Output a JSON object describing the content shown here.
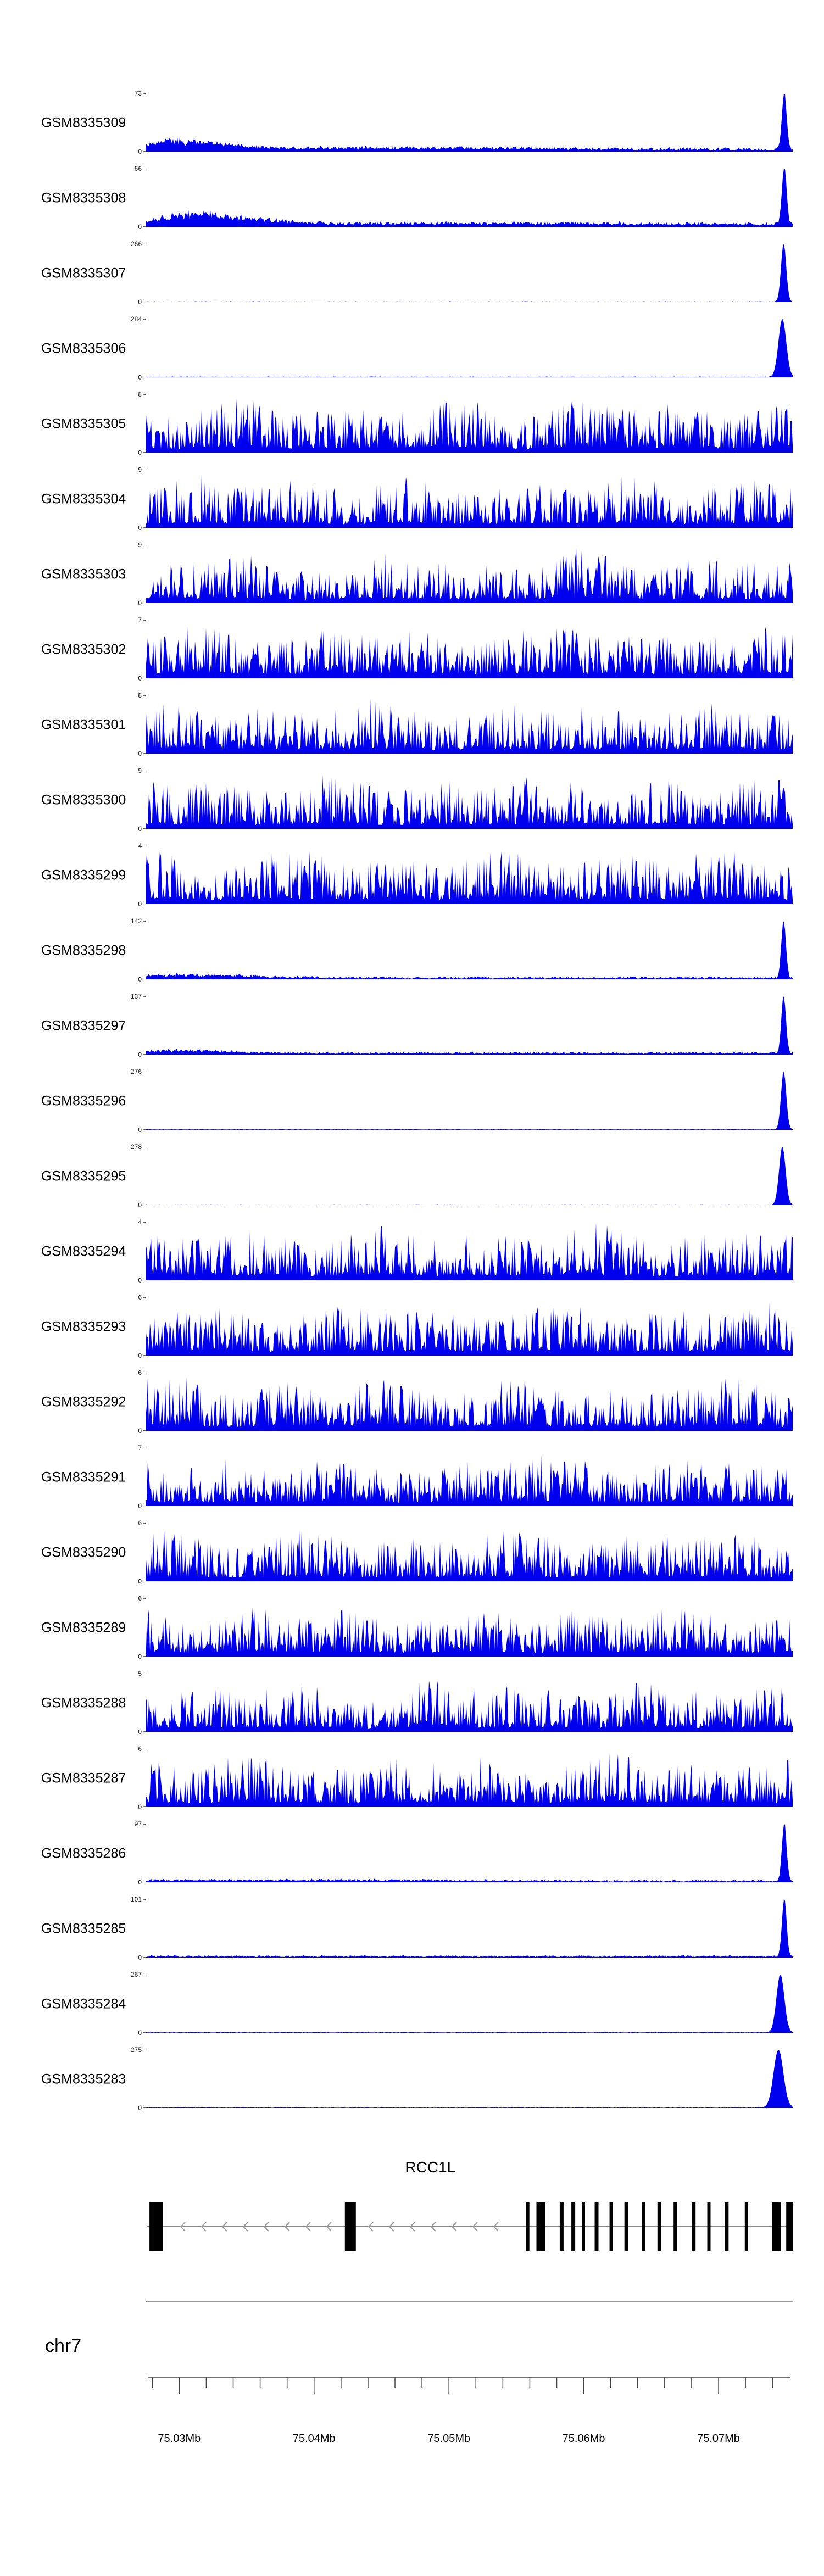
{
  "figure": {
    "background": "#ffffff",
    "signal_color": "#0000ee",
    "gene_color": "#000000",
    "intron_line_color": "#8a8a8a",
    "arrow_color": "#9a9a9a",
    "axis_color": "#444444"
  },
  "chart_data": {
    "type": "area",
    "description": "Stacked genome-browser coverage tracks (blue filled signal) over a genomic window, with RCC1L gene model and chr7 coordinate ruler below",
    "chromosome": "chr7",
    "x_range_mb": [
      75.0275,
      75.0755
    ],
    "x_tick_values": [
      75.03,
      75.04,
      75.05,
      75.06,
      75.07
    ],
    "x_tick_labels": [
      "75.03Mb",
      "75.04Mb",
      "75.05Mb",
      "75.06Mb",
      "75.07Mb"
    ],
    "minor_tick_step_mb": 0.002,
    "gene": {
      "name": "RCC1L",
      "strand": "-",
      "exons": [
        {
          "pos": 0.006,
          "w": 24
        },
        {
          "pos": 0.308,
          "w": 20
        },
        {
          "pos": 0.588,
          "w": 6
        },
        {
          "pos": 0.604,
          "w": 16
        },
        {
          "pos": 0.64,
          "w": 7
        },
        {
          "pos": 0.658,
          "w": 7
        },
        {
          "pos": 0.674,
          "w": 6
        },
        {
          "pos": 0.694,
          "w": 7
        },
        {
          "pos": 0.717,
          "w": 6
        },
        {
          "pos": 0.74,
          "w": 7
        },
        {
          "pos": 0.767,
          "w": 6
        },
        {
          "pos": 0.791,
          "w": 7
        },
        {
          "pos": 0.816,
          "w": 6
        },
        {
          "pos": 0.844,
          "w": 7
        },
        {
          "pos": 0.868,
          "w": 6
        },
        {
          "pos": 0.895,
          "w": 7
        },
        {
          "pos": 0.926,
          "w": 6
        },
        {
          "pos": 0.968,
          "w": 16
        },
        {
          "pos": 0.99,
          "w": 12
        }
      ]
    },
    "tracks": [
      {
        "label": "GSM8335309",
        "ymax": 73,
        "ymin": 0,
        "profile": "right-peak",
        "noise": 0.07,
        "bumps": [
          {
            "pos": 0.04,
            "width": 0.035,
            "amp": 0.14
          },
          {
            "pos": 0.1,
            "width": 0.05,
            "amp": 0.1
          },
          {
            "pos": 0.35,
            "width": 0.25,
            "amp": 0.035
          }
        ],
        "peak": {
          "pos": 0.987,
          "width": 0.0035,
          "amp": 1
        }
      },
      {
        "label": "GSM8335308",
        "ymax": 66,
        "ymin": 0,
        "profile": "right-peak",
        "noise": 0.075,
        "bumps": [
          {
            "pos": 0.07,
            "width": 0.05,
            "amp": 0.2
          },
          {
            "pos": 0.16,
            "width": 0.06,
            "amp": 0.1
          },
          {
            "pos": 0.55,
            "width": 0.3,
            "amp": 0.03
          }
        ],
        "peak": {
          "pos": 0.987,
          "width": 0.0035,
          "amp": 1
        }
      },
      {
        "label": "GSM8335307",
        "ymax": 266,
        "ymin": 0,
        "profile": "right-peak",
        "noise": 0.014,
        "bumps": [],
        "peak": {
          "pos": 0.986,
          "width": 0.004,
          "amp": 1
        }
      },
      {
        "label": "GSM8335306",
        "ymax": 284,
        "ymin": 0,
        "profile": "right-peak",
        "noise": 0.014,
        "bumps": [],
        "peak": {
          "pos": 0.984,
          "width": 0.006,
          "amp": 1
        }
      },
      {
        "label": "GSM8335305",
        "ymax": 8,
        "ymin": 0,
        "profile": "dense",
        "base": 0.95
      },
      {
        "label": "GSM8335304",
        "ymax": 9,
        "ymin": 0,
        "profile": "dense",
        "base": 0.92
      },
      {
        "label": "GSM8335303",
        "ymax": 9,
        "ymin": 0,
        "profile": "dense",
        "base": 0.9
      },
      {
        "label": "GSM8335302",
        "ymax": 7,
        "ymin": 0,
        "profile": "dense",
        "base": 0.95
      },
      {
        "label": "GSM8335301",
        "ymax": 8,
        "ymin": 0,
        "profile": "dense",
        "base": 0.92
      },
      {
        "label": "GSM8335300",
        "ymax": 9,
        "ymin": 0,
        "profile": "dense",
        "base": 0.95
      },
      {
        "label": "GSM8335299",
        "ymax": 4,
        "ymin": 0,
        "profile": "dense",
        "base": 1.0
      },
      {
        "label": "GSM8335298",
        "ymax": 142,
        "ymin": 0,
        "profile": "right-peak",
        "noise": 0.05,
        "bumps": [
          {
            "pos": 0.07,
            "width": 0.09,
            "amp": 0.07
          }
        ],
        "peak": {
          "pos": 0.986,
          "width": 0.0035,
          "amp": 1
        }
      },
      {
        "label": "GSM8335297",
        "ymax": 137,
        "ymin": 0,
        "profile": "right-peak",
        "noise": 0.05,
        "bumps": [
          {
            "pos": 0.05,
            "width": 0.07,
            "amp": 0.07
          }
        ],
        "peak": {
          "pos": 0.986,
          "width": 0.0035,
          "amp": 1
        }
      },
      {
        "label": "GSM8335296",
        "ymax": 276,
        "ymin": 0,
        "profile": "right-peak",
        "noise": 0.013,
        "bumps": [],
        "peak": {
          "pos": 0.986,
          "width": 0.004,
          "amp": 1
        }
      },
      {
        "label": "GSM8335295",
        "ymax": 278,
        "ymin": 0,
        "profile": "right-peak",
        "noise": 0.013,
        "bumps": [],
        "peak": {
          "pos": 0.984,
          "width": 0.005,
          "amp": 1
        }
      },
      {
        "label": "GSM8335294",
        "ymax": 4,
        "ymin": 0,
        "profile": "dense",
        "base": 1.0
      },
      {
        "label": "GSM8335293",
        "ymax": 6,
        "ymin": 0,
        "profile": "dense",
        "base": 0.95
      },
      {
        "label": "GSM8335292",
        "ymax": 6,
        "ymin": 0,
        "profile": "dense",
        "base": 0.95
      },
      {
        "label": "GSM8335291",
        "ymax": 7,
        "ymin": 0,
        "profile": "dense",
        "base": 0.88
      },
      {
        "label": "GSM8335290",
        "ymax": 6,
        "ymin": 0,
        "profile": "dense",
        "base": 0.92
      },
      {
        "label": "GSM8335289",
        "ymax": 6,
        "ymin": 0,
        "profile": "dense",
        "base": 0.92
      },
      {
        "label": "GSM8335288",
        "ymax": 5,
        "ymin": 0,
        "profile": "dense",
        "base": 0.92
      },
      {
        "label": "GSM8335287",
        "ymax": 6,
        "ymin": 0,
        "profile": "dense",
        "base": 0.97
      },
      {
        "label": "GSM8335286",
        "ymax": 97,
        "ymin": 0,
        "profile": "right-peak",
        "noise": 0.045,
        "bumps": [
          {
            "pos": 0.2,
            "width": 0.25,
            "amp": 0.025
          }
        ],
        "peak": {
          "pos": 0.987,
          "width": 0.0035,
          "amp": 1
        }
      },
      {
        "label": "GSM8335285",
        "ymax": 101,
        "ymin": 0,
        "profile": "right-peak",
        "noise": 0.04,
        "bumps": [],
        "peak": {
          "pos": 0.987,
          "width": 0.0035,
          "amp": 1
        }
      },
      {
        "label": "GSM8335284",
        "ymax": 267,
        "ymin": 0,
        "profile": "right-peak",
        "noise": 0.016,
        "bumps": [],
        "peak": {
          "pos": 0.981,
          "width": 0.006,
          "amp": 1
        }
      },
      {
        "label": "GSM8335283",
        "ymax": 275,
        "ymin": 0,
        "profile": "right-peak",
        "noise": 0.016,
        "bumps": [],
        "peak": {
          "pos": 0.978,
          "width": 0.0075,
          "amp": 1
        }
      }
    ]
  }
}
